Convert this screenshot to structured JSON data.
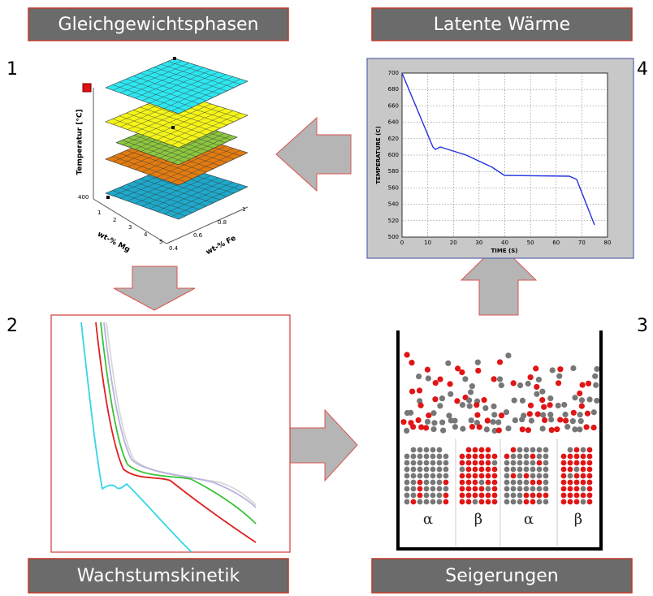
{
  "panels": {
    "equilibrium": {
      "title": "Gleichgewichtsphasen",
      "number": "1",
      "plot": {
        "z_label": "Temperatur [°C]",
        "z_tick": "400",
        "x_label": "wt-% Mg",
        "x_ticks": [
          "1",
          "2",
          "3",
          "4",
          "5"
        ],
        "y_label": "wt-% Fe",
        "y_ticks": [
          "0.4",
          "0.6",
          "0.8",
          "1"
        ]
      }
    },
    "latent_heat": {
      "title": "Latente Wärme",
      "number": "4",
      "plot": {
        "x_label": "TIME (S)",
        "y_label": "TEMPERATURE (C)",
        "x_ticks": [
          "0",
          "10",
          "20",
          "30",
          "40",
          "50",
          "60",
          "70",
          "80"
        ],
        "y_ticks": [
          "500",
          "520",
          "540",
          "560",
          "580",
          "600",
          "620",
          "640",
          "660",
          "680",
          "700"
        ]
      }
    },
    "growth_kinetics": {
      "title": "Wachstumskinetik",
      "number": "2"
    },
    "segregation": {
      "title": "Seigerungen",
      "number": "3",
      "phases": [
        "α",
        "β",
        "α",
        "β"
      ]
    }
  }
}
